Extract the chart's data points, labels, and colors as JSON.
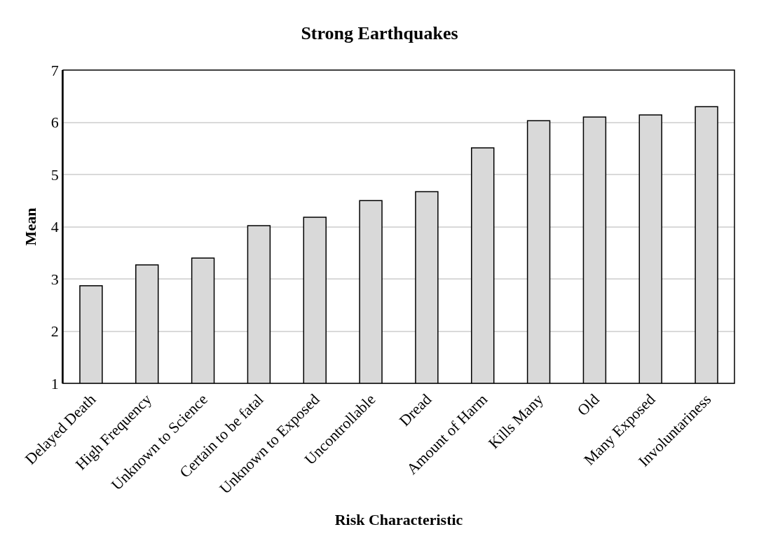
{
  "chart_data": {
    "type": "bar",
    "title": "Strong Earthquakes",
    "xlabel": "Risk Characteristic",
    "ylabel": "Mean",
    "categories": [
      "Delayed Death",
      "High Frequency",
      "Unknown to Science",
      "Certain to be fatal",
      "Unknown to Exposed",
      "Uncontrollable",
      "Dread",
      "Amount of Harm",
      "Kills Many",
      "Old",
      "Many Exposed",
      "Involuntariness"
    ],
    "values": [
      2.87,
      3.27,
      3.4,
      4.02,
      4.18,
      4.5,
      4.67,
      5.51,
      6.03,
      6.1,
      6.14,
      6.3
    ],
    "color": "#d9d9d9",
    "ylim": [
      1,
      7
    ],
    "yticks": [
      1,
      2,
      3,
      4,
      5,
      6,
      7
    ],
    "grid": "y"
  }
}
